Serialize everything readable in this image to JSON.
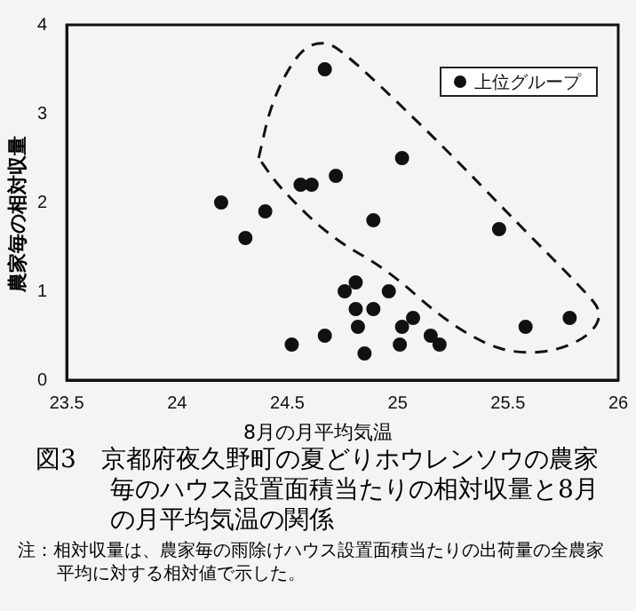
{
  "chart_data": {
    "type": "scatter",
    "title": "図3　京都府夜久野町の夏どりホウレンソウの農家毎のハウス設置面積当たりの相対収量と8月の月平均気温の関係",
    "xlabel": "8月の月平均気温",
    "ylabel": "農家毎の相対収量",
    "annotations": [
      "注：相対収量は、農家毎の雨除けハウス設置面積当たりの出荷量の全農家平均に対する相対値で示した。"
    ],
    "series": [
      {
        "name": "上位グループ",
        "color": "#111111",
        "x": [
          24.2,
          24.31,
          24.4,
          24.52,
          24.56,
          24.61,
          24.67,
          24.67,
          24.72,
          24.76,
          24.81,
          24.81,
          24.82,
          24.85,
          24.89,
          24.89,
          24.96,
          25.01,
          25.02,
          25.02,
          25.07,
          25.15,
          25.19,
          25.46,
          25.58,
          25.78
        ],
        "values": [
          2.0,
          1.6,
          1.9,
          0.4,
          2.2,
          2.2,
          0.5,
          3.5,
          2.3,
          1.0,
          0.8,
          1.1,
          0.6,
          0.3,
          0.8,
          1.8,
          1.0,
          0.4,
          0.6,
          2.5,
          0.7,
          0.5,
          0.4,
          1.7,
          0.6,
          0.7
        ]
      }
    ],
    "xlim": [
      23.5,
      26
    ],
    "xticks": [
      23.5,
      24,
      24.5,
      25,
      25.5,
      26
    ],
    "ylim": [
      0,
      4
    ],
    "yticks": [
      0,
      1,
      2,
      3,
      4
    ],
    "grid": false,
    "legend": "top right",
    "marker": "circle"
  }
}
